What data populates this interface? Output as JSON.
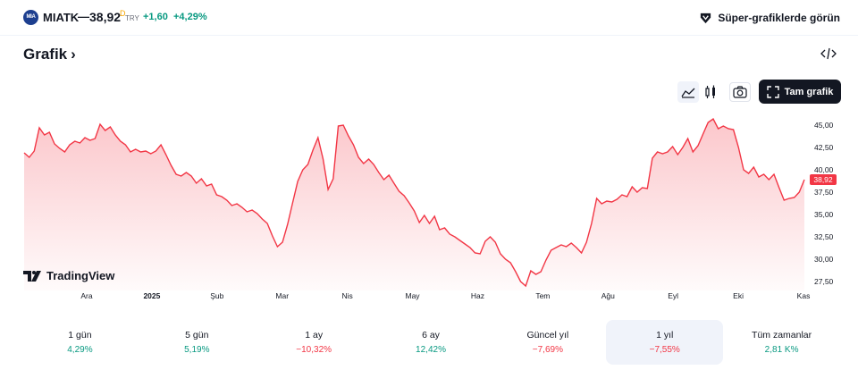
{
  "header": {
    "logo_text": "MIA",
    "ticker": "MIATK",
    "dash": "—",
    "price": "38,92",
    "price_marker": "D",
    "currency": "TRY",
    "change": "+1,60",
    "change_pct": "+4,29%",
    "super_charts": "Süper-grafiklerde görün"
  },
  "section": {
    "title": "Grafik",
    "chevron": "›"
  },
  "toolbar": {
    "icons": [
      "area-chart-icon",
      "candle-chart-icon",
      "camera-icon",
      "embed-code-icon"
    ],
    "fullscreen_label": "Tam grafik"
  },
  "chart_data": {
    "type": "area",
    "color": "#f23645",
    "last_value_label": "38,92",
    "x_ticks": [
      "Ara",
      "2025",
      "Şub",
      "Mar",
      "Nis",
      "May",
      "Haz",
      "Tem",
      "Ağu",
      "Eyl",
      "Eki",
      "Kas"
    ],
    "y_ticks": [
      "45,00",
      "42,50",
      "40,00",
      "37,50",
      "35,00",
      "32,50",
      "30,00",
      "27,50"
    ],
    "ylim": [
      26.5,
      46.5
    ],
    "values": [
      41.9,
      41.4,
      42.1,
      44.7,
      43.9,
      44.2,
      42.9,
      42.4,
      42.0,
      42.8,
      43.2,
      43.0,
      43.6,
      43.3,
      43.5,
      45.1,
      44.4,
      44.8,
      43.9,
      43.2,
      42.8,
      42.0,
      42.3,
      42.0,
      42.1,
      41.8,
      42.1,
      42.8,
      41.7,
      40.5,
      39.5,
      39.3,
      39.7,
      39.3,
      38.5,
      39.0,
      38.2,
      38.4,
      37.2,
      37.0,
      36.6,
      36.0,
      36.2,
      35.8,
      35.3,
      35.5,
      35.1,
      34.5,
      34.0,
      32.6,
      31.4,
      31.9,
      33.9,
      36.3,
      38.7,
      40.0,
      40.6,
      42.2,
      43.6,
      41.2,
      37.8,
      39.0,
      44.9,
      45.0,
      43.8,
      42.8,
      41.4,
      40.7,
      41.2,
      40.6,
      39.7,
      38.9,
      39.4,
      38.5,
      37.6,
      37.1,
      36.3,
      35.4,
      34.1,
      34.9,
      34.0,
      34.8,
      33.3,
      33.5,
      32.8,
      32.5,
      32.1,
      31.7,
      31.3,
      30.7,
      30.6,
      32.0,
      32.5,
      31.9,
      30.6,
      30.0,
      29.6,
      28.6,
      27.5,
      27.0,
      28.7,
      28.3,
      28.6,
      29.9,
      31.0,
      31.3,
      31.6,
      31.4,
      31.8,
      31.3,
      30.7,
      31.9,
      34.0,
      36.8,
      36.2,
      36.5,
      36.4,
      36.7,
      37.2,
      37.0,
      38.1,
      37.5,
      38.0,
      37.9,
      41.3,
      42.0,
      41.8,
      42.0,
      42.6,
      41.7,
      42.5,
      43.5,
      42.0,
      42.7,
      44.0,
      45.3,
      45.7,
      44.6,
      44.9,
      44.6,
      44.5,
      42.5,
      40.0,
      39.6,
      40.3,
      39.2,
      39.5,
      38.9,
      39.5,
      38.0,
      36.6,
      36.8,
      36.9,
      37.5,
      38.9
    ]
  },
  "watermark": {
    "brand": "TradingView"
  },
  "ranges": [
    {
      "label": "1 gün",
      "value": "4,29%",
      "sign": "pos",
      "active": false
    },
    {
      "label": "5 gün",
      "value": "5,19%",
      "sign": "pos",
      "active": false
    },
    {
      "label": "1 ay",
      "value": "−10,32%",
      "sign": "neg",
      "active": false
    },
    {
      "label": "6 ay",
      "value": "12,42%",
      "sign": "pos",
      "active": false
    },
    {
      "label": "Güncel yıl",
      "value": "−7,69%",
      "sign": "neg",
      "active": false
    },
    {
      "label": "1 yıl",
      "value": "−7,55%",
      "sign": "neg",
      "active": true
    },
    {
      "label": "Tüm zamanlar",
      "value": "2,81 K%",
      "sign": "pos",
      "active": false
    }
  ]
}
